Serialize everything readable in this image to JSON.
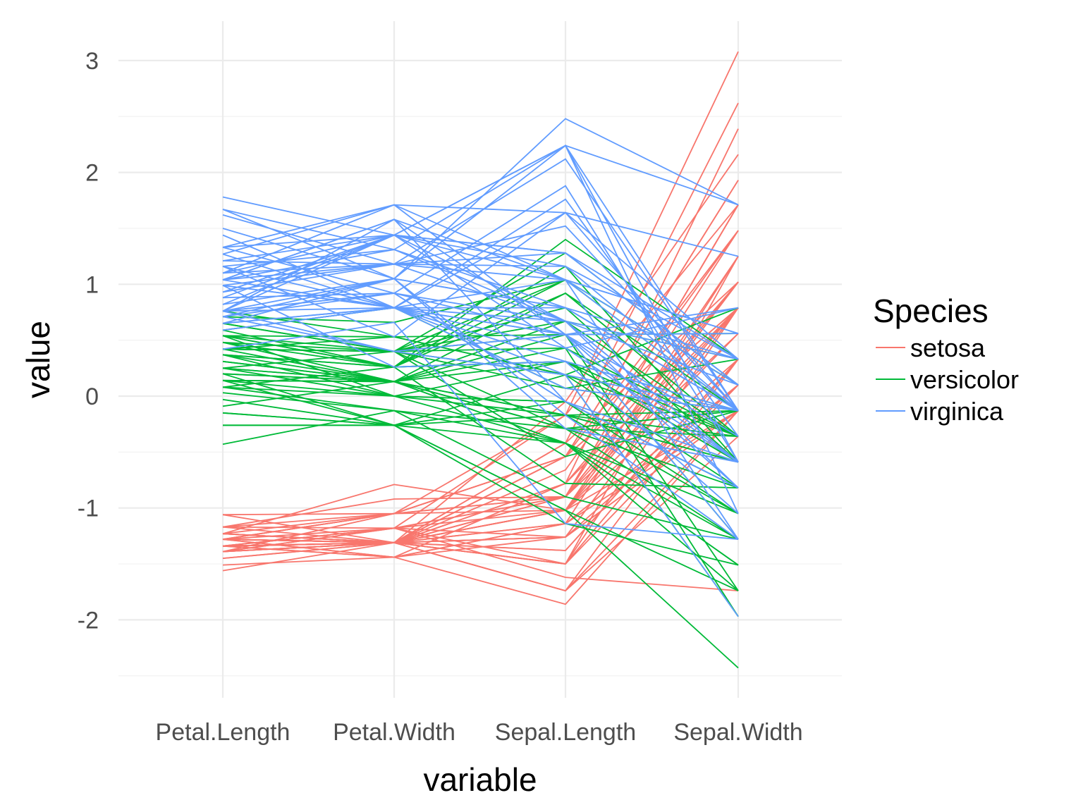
{
  "chart_data": {
    "type": "line",
    "subtype": "parallel-coordinates",
    "title": "",
    "xlabel": "variable",
    "ylabel": "value",
    "categories": [
      "Petal.Length",
      "Petal.Width",
      "Sepal.Length",
      "Sepal.Width"
    ],
    "ylim": [
      -2.55,
      3.2
    ],
    "yticks": [
      -2,
      -1,
      0,
      1,
      2,
      3
    ],
    "grid": true,
    "legend": {
      "title": "Species",
      "position": "right"
    },
    "series": [
      {
        "name": "setosa",
        "color": "#F8766D",
        "lines": [
          [
            -1.34,
            -1.31,
            -0.9,
            1.02
          ],
          [
            -1.34,
            -1.31,
            -1.14,
            -0.13
          ],
          [
            -1.39,
            -1.31,
            -1.38,
            0.33
          ],
          [
            -1.28,
            -1.31,
            -1.5,
            0.1
          ],
          [
            -1.34,
            -1.31,
            -1.02,
            1.25
          ],
          [
            -1.17,
            -1.05,
            -0.54,
            1.93
          ],
          [
            -1.34,
            -1.18,
            -1.5,
            0.79
          ],
          [
            -1.28,
            -1.31,
            -1.02,
            0.79
          ],
          [
            -1.34,
            -1.31,
            -1.74,
            -0.36
          ],
          [
            -1.28,
            -1.44,
            -1.14,
            0.1
          ],
          [
            -1.28,
            -1.31,
            -0.54,
            1.48
          ],
          [
            -1.23,
            -1.31,
            -1.26,
            0.79
          ],
          [
            -1.34,
            -1.44,
            -1.26,
            -0.13
          ],
          [
            -1.51,
            -1.44,
            -1.86,
            -0.13
          ],
          [
            -1.45,
            -1.31,
            -0.05,
            2.16
          ],
          [
            -1.28,
            -1.05,
            -0.17,
            3.08
          ],
          [
            -1.39,
            -1.05,
            -0.54,
            1.93
          ],
          [
            -1.34,
            -1.18,
            -0.9,
            1.02
          ],
          [
            -1.17,
            -1.18,
            -0.17,
            1.71
          ],
          [
            -1.28,
            -1.18,
            -0.9,
            1.71
          ],
          [
            -1.17,
            -1.31,
            -0.54,
            0.79
          ],
          [
            -1.28,
            -1.05,
            -0.9,
            1.48
          ],
          [
            -1.56,
            -1.31,
            -1.5,
            1.25
          ],
          [
            -1.17,
            -0.92,
            -0.9,
            0.56
          ],
          [
            -1.06,
            -1.31,
            -1.26,
            0.79
          ],
          [
            -1.23,
            -1.31,
            -1.02,
            -0.13
          ],
          [
            -1.23,
            -1.05,
            -1.02,
            0.79
          ],
          [
            -1.28,
            -1.31,
            -0.78,
            1.02
          ],
          [
            -1.34,
            -1.31,
            -0.78,
            0.79
          ],
          [
            -1.23,
            -1.31,
            -1.38,
            0.33
          ],
          [
            -1.23,
            -1.31,
            -1.26,
            0.1
          ],
          [
            -1.28,
            -1.05,
            -0.54,
            0.79
          ],
          [
            -1.28,
            -1.44,
            -0.78,
            2.39
          ],
          [
            -1.34,
            -1.31,
            -0.42,
            2.62
          ],
          [
            -1.28,
            -1.31,
            -1.14,
            0.1
          ],
          [
            -1.45,
            -1.31,
            -1.02,
            0.33
          ],
          [
            -1.39,
            -1.31,
            -0.42,
            1.02
          ],
          [
            -1.34,
            -1.44,
            -1.14,
            1.25
          ],
          [
            -1.39,
            -1.31,
            -1.74,
            -0.13
          ],
          [
            -1.28,
            -1.31,
            -0.9,
            0.79
          ],
          [
            -1.39,
            -1.18,
            -1.02,
            1.02
          ],
          [
            -1.39,
            -1.18,
            -1.62,
            -1.74
          ],
          [
            -1.39,
            -1.31,
            -1.74,
            0.33
          ],
          [
            -1.23,
            -0.79,
            -1.02,
            1.02
          ],
          [
            -1.06,
            -1.05,
            -0.9,
            1.71
          ],
          [
            -1.34,
            -1.18,
            -1.26,
            -0.13
          ],
          [
            -1.23,
            -1.31,
            -0.9,
            1.71
          ],
          [
            -1.34,
            -1.31,
            -1.5,
            0.33
          ],
          [
            -1.28,
            -1.31,
            -0.66,
            1.48
          ],
          [
            -1.34,
            -1.31,
            -1.02,
            0.56
          ]
        ]
      },
      {
        "name": "versicolor",
        "color": "#00BA38",
        "lines": [
          [
            0.54,
            0.26,
            1.4,
            0.33
          ],
          [
            0.42,
            0.4,
            0.67,
            0.33
          ],
          [
            0.65,
            0.4,
            1.28,
            0.1
          ],
          [
            0.14,
            0.13,
            -0.42,
            -1.74
          ],
          [
            0.48,
            0.4,
            0.79,
            -0.59
          ],
          [
            0.42,
            0.13,
            -0.17,
            -0.59
          ],
          [
            0.54,
            0.53,
            0.55,
            0.56
          ],
          [
            -0.26,
            -0.26,
            -1.14,
            -1.51
          ],
          [
            0.48,
            0.13,
            0.92,
            -0.36
          ],
          [
            0.08,
            0.26,
            -0.78,
            -0.82
          ],
          [
            -0.15,
            -0.26,
            -1.02,
            -2.43
          ],
          [
            0.25,
            0.4,
            0.07,
            -0.13
          ],
          [
            0.14,
            -0.26,
            0.19,
            -1.97
          ],
          [
            0.54,
            0.26,
            0.31,
            -0.36
          ],
          [
            -0.09,
            0.13,
            -0.29,
            -0.36
          ],
          [
            0.37,
            0.26,
            1.04,
            0.1
          ],
          [
            0.42,
            0.4,
            -0.29,
            -0.13
          ],
          [
            0.2,
            -0.26,
            -0.05,
            -0.82
          ],
          [
            0.42,
            0.4,
            0.43,
            -1.97
          ],
          [
            0.08,
            -0.13,
            -0.29,
            -1.28
          ],
          [
            0.59,
            0.79,
            0.07,
            0.33
          ],
          [
            0.14,
            0.13,
            0.31,
            -0.59
          ],
          [
            0.65,
            0.4,
            0.55,
            -1.28
          ],
          [
            0.54,
            0.0,
            0.31,
            -0.59
          ],
          [
            0.31,
            0.13,
            0.67,
            -0.36
          ],
          [
            0.37,
            0.26,
            0.92,
            -0.13
          ],
          [
            0.59,
            0.26,
            1.16,
            -0.59
          ],
          [
            0.71,
            0.66,
            1.04,
            -0.13
          ],
          [
            0.42,
            0.4,
            0.19,
            -0.36
          ],
          [
            -0.15,
            -0.26,
            -0.17,
            -1.05
          ],
          [
            0.03,
            -0.13,
            -0.42,
            -1.51
          ],
          [
            -0.03,
            -0.26,
            -0.42,
            -1.51
          ],
          [
            0.08,
            0.0,
            -0.05,
            -0.82
          ],
          [
            0.76,
            0.53,
            0.19,
            -0.82
          ],
          [
            0.42,
            0.4,
            -0.54,
            -0.13
          ],
          [
            0.42,
            0.53,
            0.19,
            0.79
          ],
          [
            0.54,
            0.4,
            1.04,
            0.1
          ],
          [
            0.37,
            0.13,
            0.55,
            -1.74
          ],
          [
            0.2,
            0.13,
            -0.29,
            -0.13
          ],
          [
            0.14,
            0.13,
            -0.42,
            -1.28
          ],
          [
            0.37,
            0.0,
            -0.42,
            -1.05
          ],
          [
            0.48,
            0.26,
            0.31,
            -0.13
          ],
          [
            0.14,
            0.0,
            -0.05,
            -1.05
          ],
          [
            -0.26,
            -0.26,
            -1.02,
            -1.74
          ],
          [
            0.25,
            0.13,
            -0.29,
            -0.82
          ],
          [
            0.25,
            0.0,
            -0.17,
            -0.13
          ],
          [
            0.25,
            0.13,
            -0.17,
            -0.36
          ],
          [
            0.31,
            0.13,
            0.43,
            -0.36
          ],
          [
            -0.43,
            -0.13,
            -0.9,
            -1.28
          ],
          [
            0.2,
            0.13,
            -0.17,
            -0.59
          ]
        ]
      },
      {
        "name": "virginica",
        "color": "#619CFF",
        "lines": [
          [
            1.27,
            1.71,
            0.55,
            0.56
          ],
          [
            0.76,
            0.92,
            -0.05,
            -0.82
          ],
          [
            1.21,
            1.18,
            1.52,
            -0.13
          ],
          [
            1.04,
            0.79,
            0.55,
            -0.36
          ],
          [
            1.16,
            1.31,
            0.79,
            -0.13
          ],
          [
            1.62,
            1.18,
            2.12,
            -0.13
          ],
          [
            0.42,
            0.66,
            -1.14,
            -1.28
          ],
          [
            1.44,
            0.79,
            1.76,
            -0.36
          ],
          [
            1.16,
            0.79,
            1.04,
            -1.28
          ],
          [
            1.33,
            1.71,
            1.64,
            1.25
          ],
          [
            0.76,
            1.05,
            0.79,
            0.33
          ],
          [
            0.88,
            0.92,
            0.67,
            -0.82
          ],
          [
            0.99,
            1.18,
            1.16,
            -0.13
          ],
          [
            0.71,
            1.05,
            -0.17,
            -1.28
          ],
          [
            0.76,
            1.58,
            -0.05,
            -0.59
          ],
          [
            0.88,
            1.44,
            0.67,
            0.33
          ],
          [
            0.99,
            0.79,
            0.79,
            -0.13
          ],
          [
            1.67,
            1.31,
            2.24,
            1.71
          ],
          [
            1.78,
            1.44,
            2.24,
            -1.05
          ],
          [
            0.71,
            0.4,
            0.19,
            -1.97
          ],
          [
            1.1,
            1.44,
            1.28,
            0.33
          ],
          [
            0.65,
            1.05,
            -0.29,
            -0.59
          ],
          [
            1.67,
            1.05,
            2.24,
            -0.59
          ],
          [
            0.65,
            0.79,
            0.55,
            -0.82
          ],
          [
            1.1,
            1.18,
            1.04,
            0.56
          ],
          [
            1.27,
            0.79,
            1.64,
            0.33
          ],
          [
            0.59,
            0.79,
            0.43,
            -0.59
          ],
          [
            0.65,
            0.79,
            0.31,
            -0.13
          ],
          [
            1.04,
            1.18,
            0.67,
            -0.59
          ],
          [
            1.16,
            0.53,
            1.64,
            -0.13
          ],
          [
            1.33,
            0.92,
            1.88,
            -0.59
          ],
          [
            1.5,
            1.05,
            2.48,
            1.71
          ],
          [
            1.04,
            1.31,
            0.67,
            -0.59
          ],
          [
            0.76,
            0.4,
            0.55,
            -0.59
          ],
          [
            0.99,
            0.26,
            0.31,
            -1.05
          ],
          [
            1.33,
            1.44,
            2.24,
            -0.13
          ],
          [
            1.04,
            1.58,
            0.55,
            0.79
          ],
          [
            0.99,
            0.79,
            0.67,
            0.1
          ],
          [
            0.59,
            0.79,
            0.19,
            -0.13
          ],
          [
            0.93,
            1.18,
            1.28,
            0.1
          ],
          [
            1.04,
            1.58,
            1.04,
            0.1
          ],
          [
            0.76,
            1.44,
            1.28,
            0.1
          ],
          [
            0.76,
            0.92,
            -0.05,
            -0.82
          ],
          [
            1.21,
            1.44,
            1.16,
            0.33
          ],
          [
            1.1,
            1.71,
            1.04,
            0.56
          ],
          [
            0.82,
            1.44,
            1.04,
            -0.13
          ],
          [
            0.71,
            0.92,
            0.55,
            -1.28
          ],
          [
            0.82,
            1.05,
            0.79,
            -0.13
          ],
          [
            0.93,
            1.44,
            0.43,
            0.79
          ],
          [
            0.76,
            0.79,
            0.07,
            -0.13
          ]
        ]
      }
    ]
  }
}
